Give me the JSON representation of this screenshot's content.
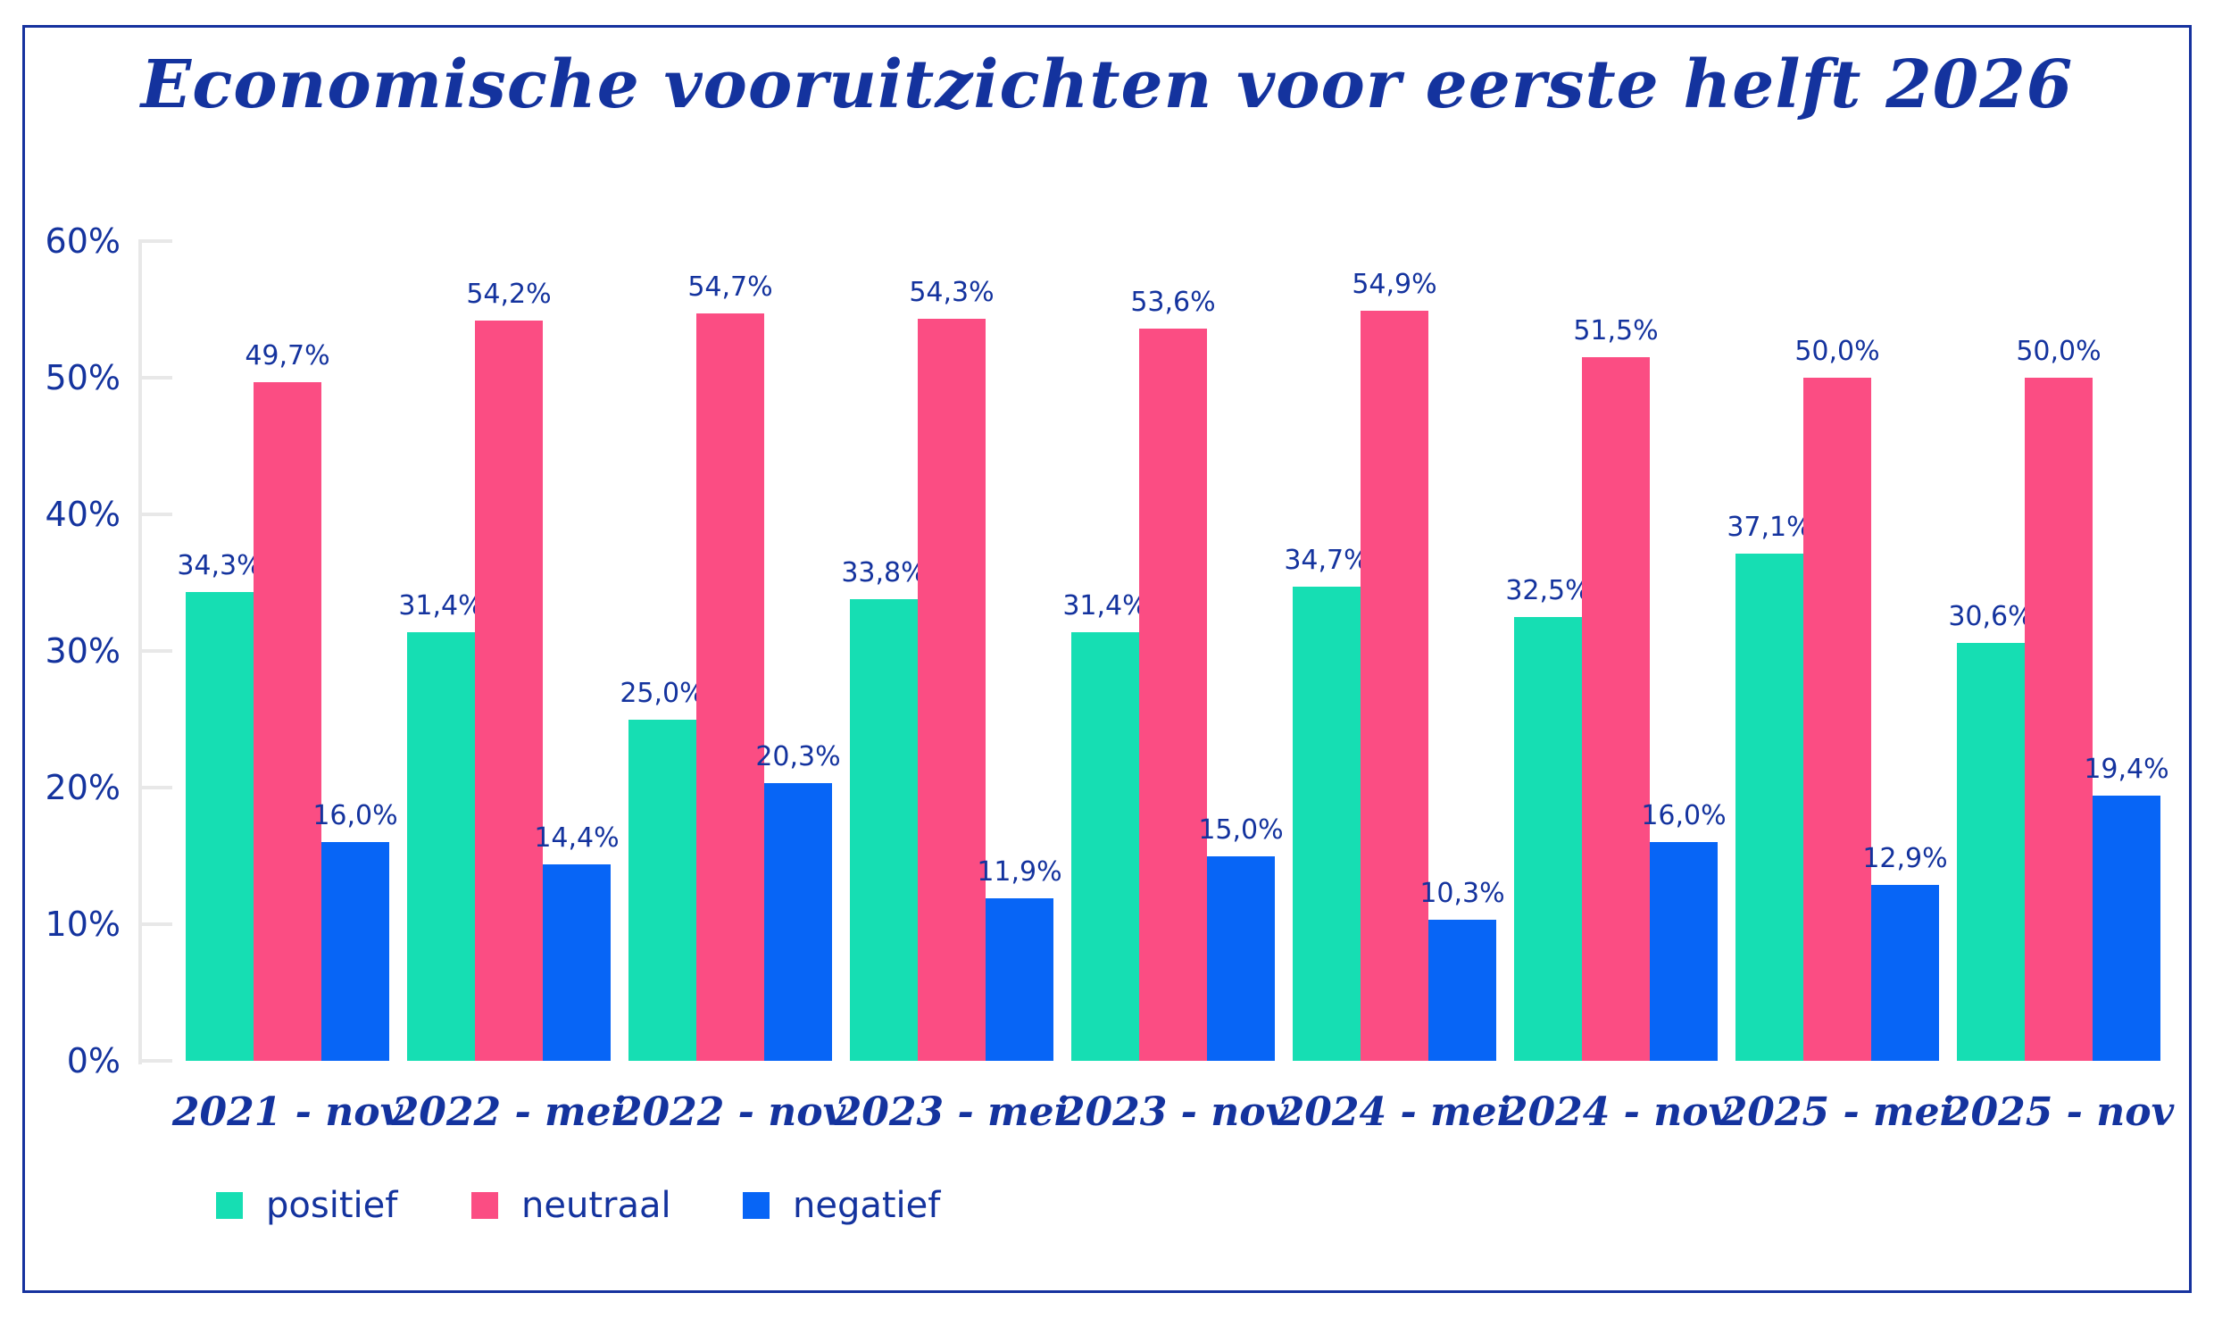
{
  "title": "Economische vooruitzichten voor eerste helft 2026",
  "chart_data": {
    "type": "bar",
    "title": "Economische vooruitzichten voor eerste helft 2026",
    "categories": [
      "2021 - nov",
      "2022 - mei",
      "2022 - nov",
      "2023 - mei",
      "2023 - nov",
      "2024 - mei",
      "2024 - nov",
      "2025 - mei",
      "2025 - nov"
    ],
    "series": [
      {
        "name": "positief",
        "color": "#16DEB3",
        "values": [
          34.3,
          31.4,
          25.0,
          33.8,
          31.4,
          34.7,
          32.5,
          37.1,
          30.6
        ]
      },
      {
        "name": "neutraal",
        "color": "#FB4D83",
        "values": [
          49.7,
          54.2,
          54.7,
          54.3,
          53.6,
          54.9,
          51.5,
          50.0,
          50.0
        ]
      },
      {
        "name": "negatief",
        "color": "#0765F6",
        "values": [
          16.0,
          14.4,
          20.3,
          11.9,
          15.0,
          10.3,
          16.0,
          12.9,
          19.4
        ]
      }
    ],
    "y_ticks": [
      "0%",
      "10%",
      "20%",
      "30%",
      "40%",
      "50%",
      "60%"
    ],
    "ylim": [
      0,
      60
    ],
    "xlabel": "",
    "ylabel": "",
    "grid": "ticks-only",
    "legend_position": "bottom-left",
    "decimal_separator": ",",
    "value_suffix": "%"
  },
  "colors": {
    "text_navy": "#14339E",
    "frame_border": "#16329E",
    "axis_gray": "#E8E8E8",
    "background": "#FFFFFF"
  }
}
